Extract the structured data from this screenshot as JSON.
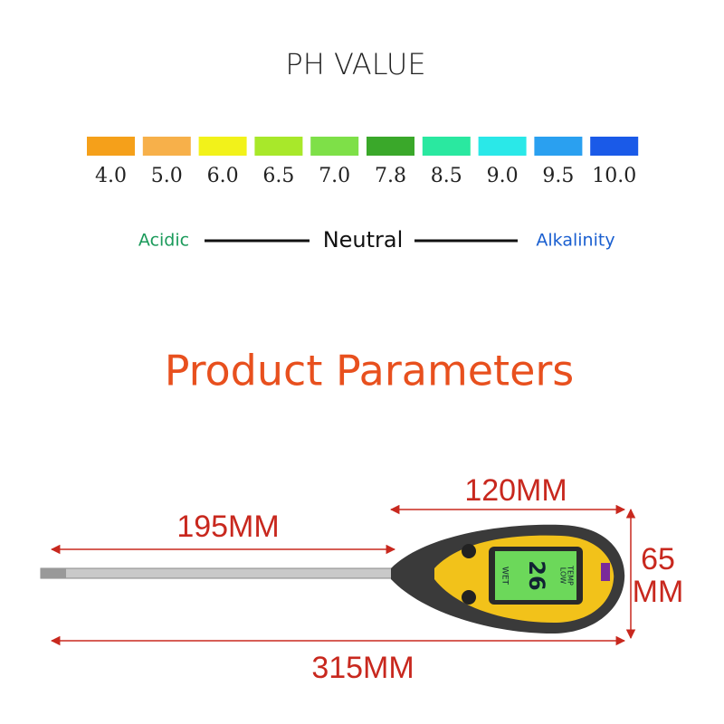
{
  "header": {
    "title": "PH VALUE"
  },
  "ph_scale": {
    "items": [
      {
        "label": "4.0",
        "color": "#f5a01a"
      },
      {
        "label": "5.0",
        "color": "#f7b04a"
      },
      {
        "label": "6.0",
        "color": "#f2f21a"
      },
      {
        "label": "6.5",
        "color": "#a8e82a"
      },
      {
        "label": "7.0",
        "color": "#7ee048"
      },
      {
        "label": "7.8",
        "color": "#3aa82a"
      },
      {
        "label": "8.5",
        "color": "#2ae8a0"
      },
      {
        "label": "9.0",
        "color": "#2ae8e8"
      },
      {
        "label": "9.5",
        "color": "#2aa0f0"
      },
      {
        "label": "10.0",
        "color": "#1a5ae8"
      }
    ],
    "acidic": "Acidic",
    "neutral": "Neutral",
    "alkalinity": "Alkalinity"
  },
  "parameters": {
    "title": "Product Parameters",
    "head_length": "120MM",
    "probe_length": "195MM",
    "height_top": "65",
    "height_bottom": "MM",
    "total_length": "315MM"
  },
  "device": {
    "reading": "26",
    "mode": "WET",
    "status_1": "LOW",
    "status_2": "TEMP"
  }
}
